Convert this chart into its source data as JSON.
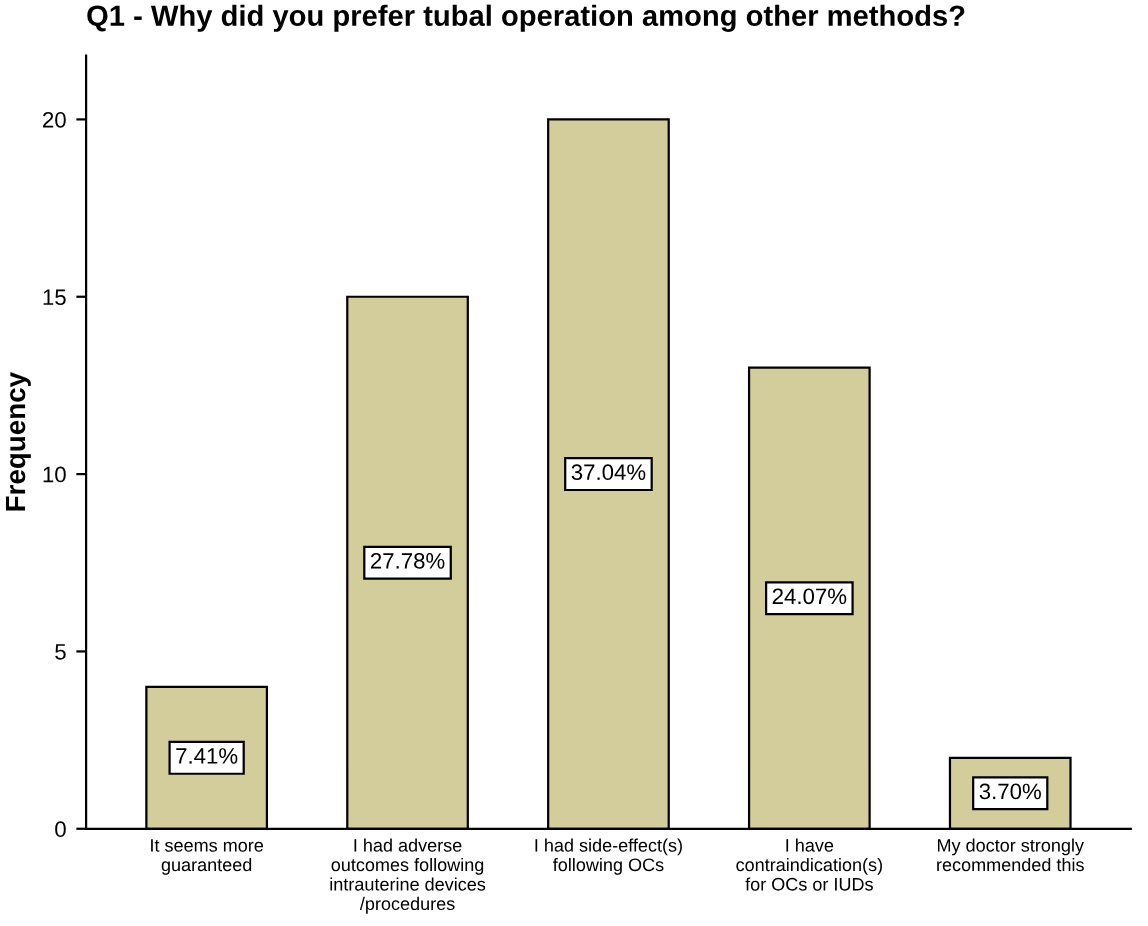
{
  "chart_data": {
    "type": "bar",
    "title": "Q1 - Why did you prefer tubal operation among other methods?",
    "ylabel": "Frequency",
    "categories": [
      "It seems more\nguaranteed",
      "I had adverse\noutcomes following\nintrauterine devices\n/procedures",
      "I had side-effect(s)\nfollowing OCs",
      "I have\ncontraindication(s)\nfor OCs or IUDs",
      "My doctor strongly\nrecommended this"
    ],
    "values": [
      4,
      15,
      20,
      13,
      2
    ],
    "annotations": [
      {
        "text": "7.41%",
        "x": "It seems more\nguaranteed",
        "y": 2
      },
      {
        "text": "27.78%",
        "x": "I had adverse\noutcomes following\nintrauterine devices\n/procedures",
        "y": 7.5
      },
      {
        "text": "37.04%",
        "x": "I had side-effect(s)\nfollowing OCs",
        "y": 10
      },
      {
        "text": "24.07%",
        "x": "I have\ncontraindication(s)\nfor OCs or IUDs",
        "y": 6.5
      },
      {
        "text": "3.70%",
        "x": "My doctor strongly\nrecommended this",
        "y": 1
      }
    ],
    "color": "#d3cd9b",
    "ylim": [
      0,
      21.8
    ],
    "yticks": [
      0,
      5,
      10,
      15,
      20
    ],
    "grid": false,
    "legend": false
  }
}
